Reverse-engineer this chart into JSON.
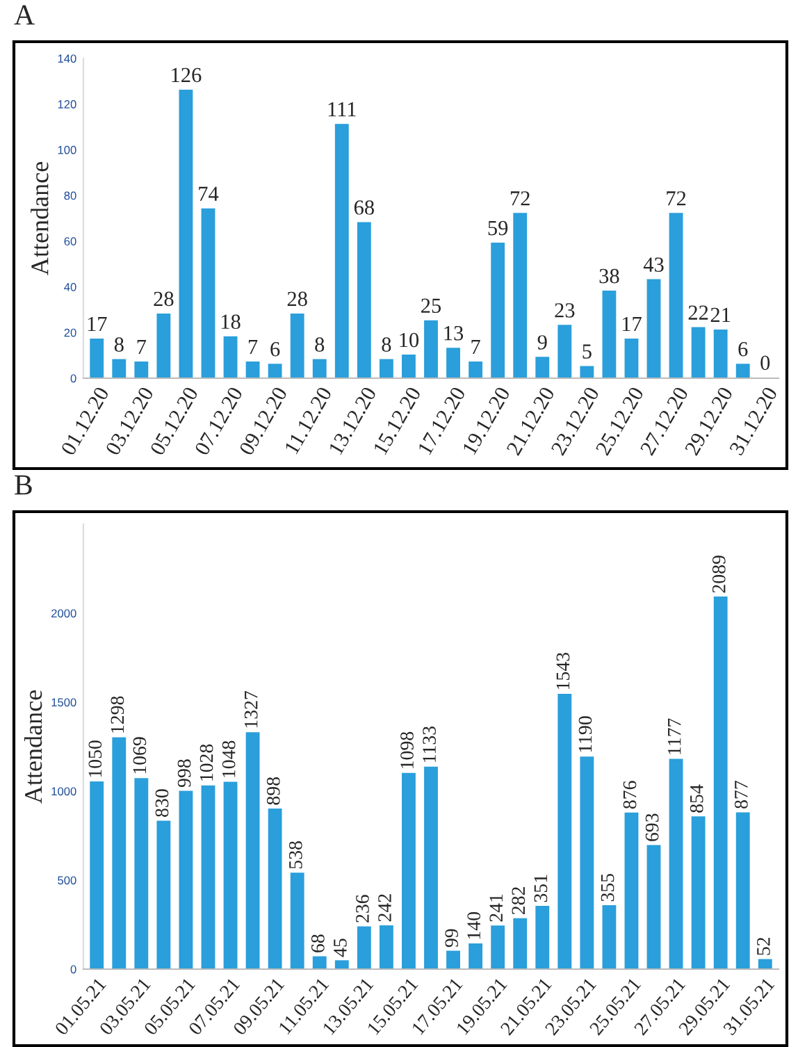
{
  "chart_data": [
    {
      "type": "bar",
      "title": "A",
      "ylabel": "Attendance",
      "categories": [
        "01.12.20",
        null,
        "03.12.20",
        null,
        "05.12.20",
        null,
        "07.12.20",
        null,
        "09.12.20",
        null,
        "11.12.20",
        null,
        "13.12.20",
        null,
        "15.12.20",
        null,
        "17.12.20",
        null,
        "19.12.20",
        null,
        "21.12.20",
        null,
        "23.12.20",
        null,
        "25.12.20",
        null,
        "27.12.20",
        null,
        "29.12.20",
        null,
        "31.12.20"
      ],
      "values": [
        17,
        8,
        7,
        28,
        126,
        74,
        18,
        7,
        6,
        28,
        8,
        111,
        68,
        8,
        10,
        25,
        13,
        7,
        59,
        72,
        9,
        23,
        5,
        38,
        17,
        43,
        72,
        22,
        21,
        6,
        0
      ],
      "color": "#2a9fdb",
      "ylim": [
        0,
        140
      ],
      "yticks": [
        0,
        20,
        40,
        60,
        80,
        100,
        120,
        140
      ],
      "data_labels": true,
      "grid": false
    },
    {
      "type": "bar",
      "title": "B",
      "ylabel": "Attendance",
      "categories": [
        "01.05.21",
        null,
        "03.05.21",
        null,
        "05.05.21",
        null,
        "07.05.21",
        null,
        "09.05.21",
        null,
        "11.05.21",
        null,
        "13.05.21",
        null,
        "15.05.21",
        null,
        "17.05.21",
        null,
        "19.05.21",
        null,
        "21.05.21",
        null,
        "23.05.21",
        null,
        "25.05.21",
        null,
        "27.05.21",
        null,
        "29.05.21",
        null,
        "31.05.21"
      ],
      "values": [
        1050,
        1298,
        1069,
        830,
        998,
        1028,
        1048,
        1327,
        898,
        538,
        68,
        45,
        236,
        242,
        1098,
        1133,
        99,
        140,
        241,
        282,
        351,
        1543,
        1190,
        355,
        876,
        693,
        1177,
        854,
        2089,
        877,
        52
      ],
      "color": "#2a9fdb",
      "ylim": [
        0,
        2500
      ],
      "yticks": [
        0,
        500,
        1000,
        1500,
        2000
      ],
      "data_labels": true,
      "grid": false
    }
  ]
}
